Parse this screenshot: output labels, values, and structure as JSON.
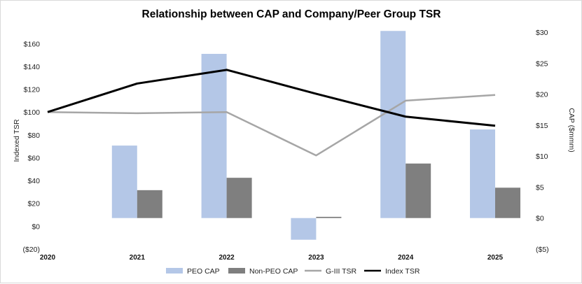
{
  "chart_data": {
    "type": "bar+line",
    "title": "Relationship between CAP and Company/Peer Group TSR",
    "categories": [
      "2020",
      "2021",
      "2022",
      "2023",
      "2024",
      "2025"
    ],
    "left_axis": {
      "label": "Indexed TSR",
      "ylim": [
        -20,
        170
      ],
      "ticks": [
        -20,
        0,
        20,
        40,
        60,
        80,
        100,
        120,
        140,
        160
      ],
      "tick_labels": [
        "($20)",
        "$0",
        "$20",
        "$40",
        "$60",
        "$80",
        "$100",
        "$120",
        "$140",
        "$160"
      ]
    },
    "right_axis": {
      "label": "CAP ($mmm)",
      "ylim": [
        -5,
        30
      ],
      "ticks": [
        -5,
        0,
        5,
        10,
        15,
        20,
        25,
        30
      ],
      "tick_labels": [
        "($5)",
        "$0",
        "$5",
        "$10",
        "$15",
        "$20",
        "$25",
        "$30"
      ]
    },
    "bar_series": [
      {
        "name": "PEO CAP",
        "color": "#b4c7e7",
        "axis": "right",
        "values": [
          null,
          11.7,
          26.5,
          -3.5,
          30.2,
          14.3
        ]
      },
      {
        "name": "Non-PEO CAP",
        "color": "#7f7f7f",
        "axis": "right",
        "values": [
          null,
          4.5,
          6.5,
          0.2,
          8.8,
          4.9
        ]
      }
    ],
    "line_series": [
      {
        "name": "G-III TSR",
        "color": "#a6a6a6",
        "axis": "left",
        "values": [
          100,
          99,
          100,
          62,
          110,
          115
        ]
      },
      {
        "name": "Index TSR",
        "color": "#000000",
        "axis": "left",
        "values": [
          100,
          125,
          137,
          116,
          96,
          88
        ]
      }
    ],
    "legend": [
      "PEO CAP",
      "Non-PEO CAP",
      "G-III TSR",
      "Index TSR"
    ],
    "legend_position": "bottom",
    "grid": false
  }
}
